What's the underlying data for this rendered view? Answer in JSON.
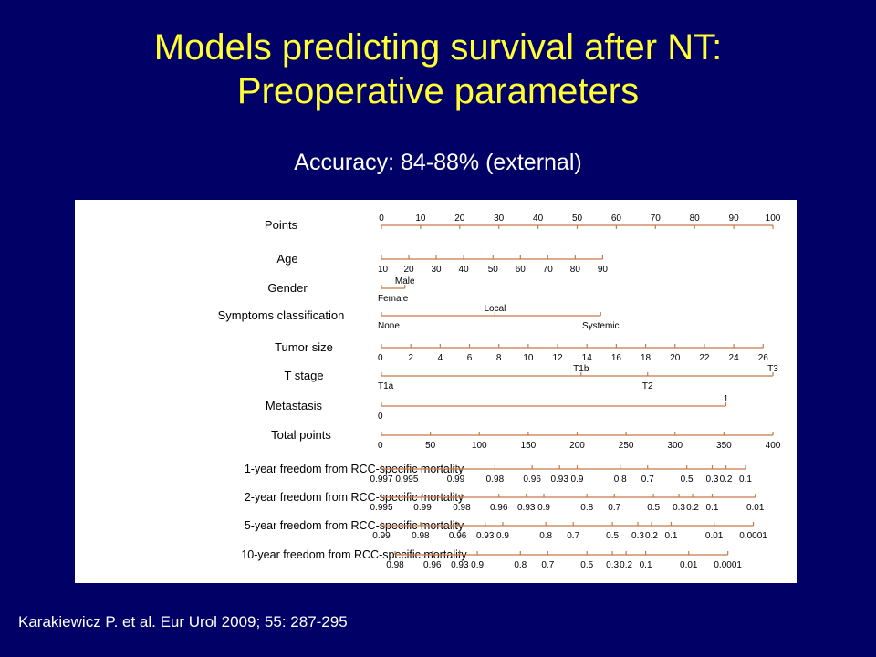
{
  "slide": {
    "title_line1": "Models predicting survival after NT:",
    "title_line2": "Preoperative parameters",
    "subtitle": "Accuracy: 84-88% (external)",
    "citation": "Karakiewicz P. et al. Eur Urol 2009; 55: 287-295"
  },
  "colors": {
    "background": "#000066",
    "title": "#ffff33",
    "axis": "#c87848",
    "text": "#000000"
  },
  "nomogram": {
    "rows": [
      {
        "id": "points",
        "label": "Points",
        "ticks": [
          {
            "label": "0",
            "pts": 0
          },
          {
            "label": "10",
            "pts": 10
          },
          {
            "label": "20",
            "pts": 20
          },
          {
            "label": "30",
            "pts": 30
          },
          {
            "label": "40",
            "pts": 40
          },
          {
            "label": "50",
            "pts": 50
          },
          {
            "label": "60",
            "pts": 60
          },
          {
            "label": "70",
            "pts": 70
          },
          {
            "label": "80",
            "pts": 80
          },
          {
            "label": "90",
            "pts": 90
          },
          {
            "label": "100",
            "pts": 100
          }
        ]
      },
      {
        "id": "age",
        "label": "Age",
        "ticks": [
          {
            "label": "10",
            "pts": 0
          },
          {
            "label": "20",
            "pts": 7
          },
          {
            "label": "30",
            "pts": 14
          },
          {
            "label": "40",
            "pts": 21
          },
          {
            "label": "50",
            "pts": 28.5
          },
          {
            "label": "60",
            "pts": 35.5
          },
          {
            "label": "70",
            "pts": 42.5
          },
          {
            "label": "80",
            "pts": 49.5
          },
          {
            "label": "90",
            "pts": 56.5
          }
        ]
      },
      {
        "id": "gender",
        "label": "Gender",
        "ticks": [
          {
            "label": "Female",
            "pts": 0,
            "pos": "below"
          },
          {
            "label": "Male",
            "pts": 6,
            "pos": "above"
          }
        ]
      },
      {
        "id": "symptoms",
        "label": "Symptoms classification",
        "ticks": [
          {
            "label": "None",
            "pts": 0,
            "pos": "below"
          },
          {
            "label": "Local",
            "pts": 29,
            "pos": "above"
          },
          {
            "label": "Systemic",
            "pts": 56,
            "pos": "below"
          }
        ]
      },
      {
        "id": "tumor_size",
        "label": "Tumor size",
        "ticks": [
          {
            "label": "0",
            "pts": 0
          },
          {
            "label": "2",
            "pts": 7.5
          },
          {
            "label": "4",
            "pts": 15
          },
          {
            "label": "6",
            "pts": 22.5
          },
          {
            "label": "8",
            "pts": 30
          },
          {
            "label": "10",
            "pts": 37.5
          },
          {
            "label": "12",
            "pts": 45
          },
          {
            "label": "14",
            "pts": 52.5
          },
          {
            "label": "16",
            "pts": 60
          },
          {
            "label": "18",
            "pts": 67.5
          },
          {
            "label": "20",
            "pts": 75
          },
          {
            "label": "22",
            "pts": 82.5
          },
          {
            "label": "24",
            "pts": 90
          },
          {
            "label": "26",
            "pts": 97.5
          }
        ]
      },
      {
        "id": "t_stage",
        "label": "T stage",
        "ticks": [
          {
            "label": "T1a",
            "pts": 0,
            "pos": "below"
          },
          {
            "label": "T1b",
            "pts": 51,
            "pos": "above"
          },
          {
            "label": "T2",
            "pts": 68,
            "pos": "below"
          },
          {
            "label": "T3",
            "pts": 100,
            "pos": "above"
          }
        ]
      },
      {
        "id": "metastasis",
        "label": "Metastasis",
        "ticks": [
          {
            "label": "0",
            "pts": 0,
            "pos": "below"
          },
          {
            "label": "1",
            "pts": 88,
            "pos": "above"
          }
        ]
      },
      {
        "id": "total_points",
        "label": "Total points",
        "ticks": [
          {
            "label": "0",
            "pts": 0
          },
          {
            "label": "50",
            "pts": 12.5
          },
          {
            "label": "100",
            "pts": 25
          },
          {
            "label": "150",
            "pts": 37.5
          },
          {
            "label": "200",
            "pts": 50
          },
          {
            "label": "250",
            "pts": 62.5
          },
          {
            "label": "300",
            "pts": 75
          },
          {
            "label": "350",
            "pts": 87.5
          },
          {
            "label": "400",
            "pts": 100
          }
        ]
      },
      {
        "id": "surv1",
        "label": "1-year freedom from RCC-specific mortality",
        "ticks": [
          {
            "label": "0.997",
            "pts": 0
          },
          {
            "label": "0.995",
            "pts": 6.5
          },
          {
            "label": "0.99",
            "pts": 19
          },
          {
            "label": "0.98",
            "pts": 29
          },
          {
            "label": "0.96",
            "pts": 38.5
          },
          {
            "label": "0.93",
            "pts": 45.5
          },
          {
            "label": "0.9",
            "pts": 50
          },
          {
            "label": "0.8",
            "pts": 61
          },
          {
            "label": "0.7",
            "pts": 68
          },
          {
            "label": "0.5",
            "pts": 78
          },
          {
            "label": "0.3",
            "pts": 84.5
          },
          {
            "label": "0.2",
            "pts": 88
          },
          {
            "label": "0.1",
            "pts": 93
          }
        ]
      },
      {
        "id": "surv2",
        "label": "2-year freedom from RCC-specific mortality",
        "ticks": [
          {
            "label": "0.995",
            "pts": 0
          },
          {
            "label": "0.99",
            "pts": 10.5
          },
          {
            "label": "0.98",
            "pts": 20.5
          },
          {
            "label": "0.96",
            "pts": 30
          },
          {
            "label": "0.93",
            "pts": 37
          },
          {
            "label": "0.9",
            "pts": 41.5
          },
          {
            "label": "0.8",
            "pts": 52.5
          },
          {
            "label": "0.7",
            "pts": 59.5
          },
          {
            "label": "0.5",
            "pts": 69.5
          },
          {
            "label": "0.3",
            "pts": 76
          },
          {
            "label": "0.2",
            "pts": 79.5
          },
          {
            "label": "0.1",
            "pts": 84.5
          },
          {
            "label": "0.01",
            "pts": 95.5
          }
        ]
      },
      {
        "id": "surv5",
        "label": "5-year freedom from RCC-specific mortality",
        "ticks": [
          {
            "label": "0.99",
            "pts": 0
          },
          {
            "label": "0.98",
            "pts": 10
          },
          {
            "label": "0.96",
            "pts": 19.5
          },
          {
            "label": "0.93",
            "pts": 26.5
          },
          {
            "label": "0.9",
            "pts": 31
          },
          {
            "label": "0.8",
            "pts": 42
          },
          {
            "label": "0.7",
            "pts": 49
          },
          {
            "label": "0.5",
            "pts": 59
          },
          {
            "label": "0.3",
            "pts": 65.5
          },
          {
            "label": "0.2",
            "pts": 69
          },
          {
            "label": "0.1",
            "pts": 74
          },
          {
            "label": "0.01",
            "pts": 85
          },
          {
            "label": "0.0001",
            "pts": 95
          }
        ]
      },
      {
        "id": "surv10",
        "label": "10-year freedom from RCC-specific mortality",
        "ticks": [
          {
            "label": "0.98",
            "pts": 3.5
          },
          {
            "label": "0.96",
            "pts": 13
          },
          {
            "label": "0.93",
            "pts": 20
          },
          {
            "label": "0.9",
            "pts": 24.5
          },
          {
            "label": "0.8",
            "pts": 35.5
          },
          {
            "label": "0.7",
            "pts": 42.5
          },
          {
            "label": "0.5",
            "pts": 52.5
          },
          {
            "label": "0.3",
            "pts": 59
          },
          {
            "label": "0.2",
            "pts": 62.5
          },
          {
            "label": "0.1",
            "pts": 67.5
          },
          {
            "label": "0.01",
            "pts": 78.5
          },
          {
            "label": "0.0001",
            "pts": 88.5
          }
        ]
      }
    ]
  }
}
